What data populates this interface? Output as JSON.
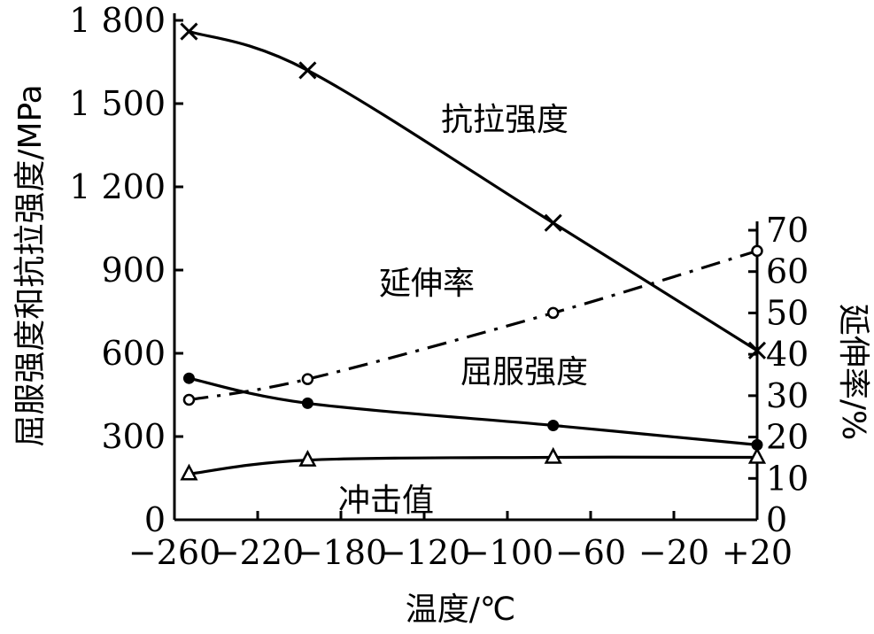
{
  "chart_data": {
    "type": "line",
    "xlabel": "温度/℃",
    "ylabel_left": "屈服强度和抗拉强度/MPa",
    "ylabel_right": "延伸率/%",
    "x_ticks": [
      "−260",
      "−220",
      "−180",
      "−120",
      "−100",
      "−60",
      "−20",
      "+20"
    ],
    "xlim": [
      -260,
      20
    ],
    "y_left_ticks": [
      "0",
      "300",
      "600",
      "900",
      "1 200",
      "1 500",
      "1 800"
    ],
    "y_left_lim": [
      0,
      1800
    ],
    "y_right_ticks": [
      "0",
      "10",
      "20",
      "30",
      "40",
      "50",
      "60",
      "70"
    ],
    "y_right_lim": [
      0,
      70
    ],
    "series": [
      {
        "name": "抗拉强度",
        "axis": "left",
        "marker": "cross",
        "style": "solid",
        "x": [
          -253,
          -196,
          -78,
          20
        ],
        "y": [
          1760,
          1620,
          1070,
          610
        ]
      },
      {
        "name": "延伸率",
        "axis": "right",
        "marker": "open-circle",
        "style": "dashdot",
        "x": [
          -253,
          -196,
          -78,
          20
        ],
        "y": [
          29,
          34,
          50,
          65
        ]
      },
      {
        "name": "屈服强度",
        "axis": "left",
        "marker": "filled-circle",
        "style": "solid",
        "x": [
          -253,
          -196,
          -78,
          20
        ],
        "y": [
          510,
          420,
          340,
          270
        ]
      },
      {
        "name": "冲击值",
        "axis": "left",
        "marker": "open-triangle",
        "style": "solid",
        "x": [
          -253,
          -196,
          -78,
          20
        ],
        "y": [
          165,
          215,
          225,
          225
        ]
      }
    ]
  }
}
